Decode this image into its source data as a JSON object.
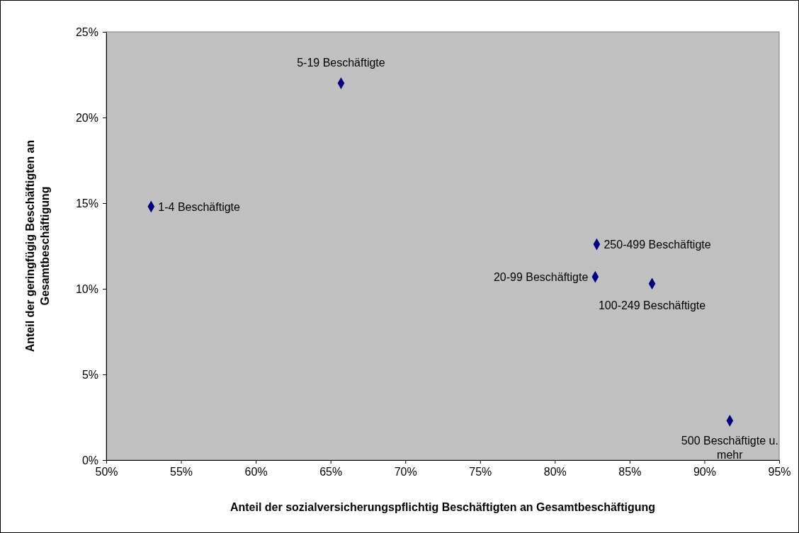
{
  "chart_data": {
    "type": "scatter",
    "xlabel": "Anteil der sozialversicherungspflichtig Beschäftigten an Gesamtbeschäftigung",
    "ylabel": "Anteil der geringfügig Beschäftigten an Gesamtbeschäftigung",
    "xlim": [
      50,
      95
    ],
    "xticks": [
      {
        "value": 50,
        "label": "50%"
      },
      {
        "value": 55,
        "label": "55%"
      },
      {
        "value": 60,
        "label": "60%"
      },
      {
        "value": 65,
        "label": "65%"
      },
      {
        "value": 70,
        "label": "70%"
      },
      {
        "value": 75,
        "label": "75%"
      },
      {
        "value": 80,
        "label": "80%"
      },
      {
        "value": 85,
        "label": "85%"
      },
      {
        "value": 90,
        "label": "90%"
      },
      {
        "value": 95,
        "label": "95%"
      }
    ],
    "ylim": [
      0,
      25
    ],
    "yticks": [
      {
        "value": 0,
        "label": "0%"
      },
      {
        "value": 5,
        "label": "5%"
      },
      {
        "value": 10,
        "label": "10%"
      },
      {
        "value": 15,
        "label": "15%"
      },
      {
        "value": 20,
        "label": "20%"
      },
      {
        "value": 25,
        "label": "25%"
      }
    ],
    "marker": "diamond",
    "grid": false,
    "series": [
      {
        "name": "1-4 Beschäftigte",
        "color": "#000080",
        "x": [
          53.0
        ],
        "values": [
          14.8
        ]
      },
      {
        "name": "5-19 Beschäftigte",
        "color": "#000080",
        "x": [
          65.7
        ],
        "values": [
          22.0
        ]
      },
      {
        "name": "20-99 Beschäftigte",
        "color": "#000080",
        "x": [
          82.7
        ],
        "values": [
          10.7
        ]
      },
      {
        "name": "100-249 Beschäftigte",
        "color": "#000080",
        "x": [
          86.5
        ],
        "values": [
          10.3
        ]
      },
      {
        "name": "250-499 Beschäftigte",
        "color": "#000080",
        "x": [
          82.8
        ],
        "values": [
          12.6
        ]
      },
      {
        "name": "500 Beschäftigte u. mehr",
        "color": "#000080",
        "x": [
          91.7
        ],
        "values": [
          2.3
        ]
      }
    ]
  }
}
